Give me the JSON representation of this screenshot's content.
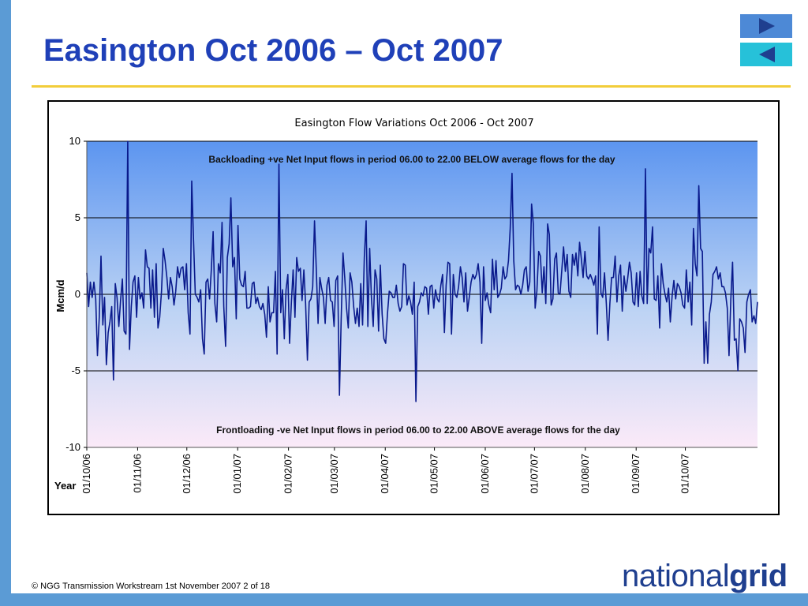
{
  "slide": {
    "title": "Easington Oct 2006 – Oct 2007",
    "footer": "© NGG Transmission Workstream 1st November 2007 2 of 18",
    "logo": {
      "part1": "national",
      "part2": "grid"
    },
    "nav": {
      "next_icon": "play-right-icon",
      "prev_icon": "play-left-icon"
    },
    "colors": {
      "title": "#1f40b8",
      "accent_bar": "#5b9bd5",
      "rule": "#f2cd3a",
      "series": "#0a1a8c"
    }
  },
  "chart_data": {
    "type": "line",
    "title": "Easington Flow Variations Oct 2006 - Oct 2007",
    "ylabel": "Mcm/d",
    "xlabel": "Year",
    "ylim": [
      -10,
      10
    ],
    "yticks": [
      -10,
      -5,
      0,
      5,
      10
    ],
    "grid": true,
    "x_start": "01/10/06",
    "x_end": "14/11/07",
    "xtick_labels": [
      "01/10/06",
      "01/11/06",
      "01/12/06",
      "01/01/07",
      "01/02/07",
      "01/03/07",
      "01/04/07",
      "01/05/07",
      "01/06/07",
      "01/07/07",
      "01/08/07",
      "01/09/07",
      "01/10/07"
    ],
    "annotations": {
      "top": "Backloading +ve Net Input flows in period 06.00 to 22.00 BELOW average flows for the day",
      "bottom": "Frontloading -ve Net Input flows in period 06.00 to 22.00 ABOVE average flows for the day"
    },
    "series": [
      {
        "values": [
          1.4,
          -0.8,
          0.8,
          -0.2,
          0.8,
          -0.3,
          -4.0,
          -1.5,
          2.5,
          -2.0,
          -0.2,
          -4.6,
          -2.5,
          -1.8,
          -0.8,
          -5.6,
          0.7,
          -0.2,
          -2.1,
          -0.4,
          1.0,
          -2.4,
          -2.6,
          10.0,
          -3.6,
          -0.8,
          0.8,
          1.2,
          -1.5,
          1.1,
          -0.3,
          0.1,
          -0.9,
          2.9,
          1.8,
          1.7,
          -0.9,
          1.6,
          -1.5,
          2.0,
          -2.2,
          -1.5,
          0.2,
          3.0,
          2.2,
          1.1,
          -0.3,
          1.1,
          0.5,
          -0.7,
          0.2,
          1.8,
          1.1,
          1.7,
          1.8,
          0.3,
          2.0,
          -1.2,
          -2.6,
          7.4,
          3.5,
          0.0,
          -0.2,
          -0.5,
          0.3,
          -2.9,
          -3.9,
          0.8,
          1.0,
          -0.3,
          1.6,
          4.1,
          -0.6,
          -1.8,
          2.0,
          1.4,
          4.7,
          -0.8,
          -3.4,
          2.4,
          3.3,
          6.3,
          1.8,
          2.4,
          -1.6,
          4.5,
          1.0,
          0.6,
          0.5,
          1.5,
          -0.9,
          -0.9,
          -0.8,
          0.7,
          0.8,
          -0.6,
          -0.2,
          -0.8,
          -1.0,
          -0.6,
          -1.3,
          -2.8,
          0.5,
          -1.8,
          -1.2,
          -1.2,
          1.5,
          -3.9,
          8.5,
          -1.2,
          0.3,
          -2.9,
          0.3,
          1.3,
          -3.2,
          -0.5,
          1.6,
          -1.5,
          2.4,
          1.5,
          1.7,
          -0.4,
          1.6,
          -0.6,
          -4.3,
          -0.5,
          -0.3,
          0.5,
          4.8,
          1.7,
          -1.9,
          1.1,
          0.4,
          -0.2,
          -1.9,
          0.6,
          1.1,
          -0.4,
          -0.5,
          -2.1,
          0.9,
          1.2,
          -6.6,
          -1.6,
          2.7,
          1.1,
          -0.9,
          -2.2,
          1.4,
          0.8,
          -0.8,
          -1.9,
          -0.9,
          -2.1,
          0.7,
          -2.0,
          2.4,
          4.8,
          -2.1,
          3.0,
          -0.2,
          -2.1,
          1.6,
          1.0,
          -2.4,
          1.9,
          -1.3,
          -2.9,
          -3.2,
          -1.3,
          0.2,
          0.1,
          -0.2,
          -0.2,
          0.6,
          -0.6,
          -1.1,
          -0.8,
          2.0,
          1.9,
          -0.7,
          -0.1,
          -0.5,
          -1.3,
          0.8,
          -7.0,
          -0.8,
          -0.5,
          0.1,
          -0.1,
          0.5,
          0.4,
          -1.3,
          0.5,
          0.6,
          -0.9,
          0.3,
          -0.3,
          -0.5,
          0.6,
          1.3,
          -2.5,
          0.6,
          2.1,
          2.0,
          -2.6,
          1.3,
          0.0,
          -0.2,
          0.5,
          1.8,
          1.1,
          -0.5,
          1.4,
          -1.1,
          -0.2,
          0.8,
          1.3,
          1.0,
          1.3,
          2.0,
          0.8,
          -3.2,
          1.8,
          -0.4,
          0.1,
          -0.7,
          -1.2,
          2.3,
          0.3,
          2.2,
          -0.2,
          0.0,
          0.4,
          1.8,
          1.0,
          1.2,
          2.2,
          4.3,
          7.9,
          2.2,
          0.3,
          0.6,
          0.5,
          0.0,
          0.6,
          1.6,
          1.8,
          0.2,
          0.8,
          5.9,
          4.6,
          -0.9,
          0.2,
          2.8,
          2.5,
          0.1,
          1.8,
          -0.6,
          4.6,
          3.9,
          -0.7,
          -0.3,
          2.3,
          2.7,
          0.1,
          0.0,
          1.6,
          3.1,
          1.5,
          2.6,
          0.2,
          -0.2,
          2.6,
          1.9,
          2.7,
          1.2,
          3.4,
          2.3,
          1.1,
          2.8,
          1.2,
          1.0,
          1.3,
          1.0,
          0.6,
          1.2,
          -2.6,
          4.4,
          0.1,
          -0.2,
          1.4,
          -0.6,
          -3.0,
          -0.6,
          1.1,
          1.1,
          2.5,
          -0.5,
          1.2,
          1.9,
          -1.1,
          1.2,
          0.2,
          1.0,
          2.1,
          1.4,
          -0.5,
          -0.7,
          1.4,
          -0.8,
          1.5,
          -0.1,
          -0.6,
          8.2,
          -0.6,
          3.0,
          2.7,
          4.4,
          -0.3,
          -0.4,
          1.2,
          -2.2,
          2.0,
          0.7,
          0.0,
          -0.5,
          0.4,
          -1.8,
          -0.1,
          0.9,
          -0.3,
          0.7,
          0.5,
          0.1,
          -0.7,
          -0.9,
          1.6,
          -0.5,
          0.8,
          -2.0,
          4.3,
          2.0,
          1.2,
          7.1,
          3.0,
          2.8,
          -4.5,
          -1.8,
          -4.5,
          -1.3,
          -0.5,
          1.3,
          1.5,
          1.8,
          1.0,
          1.4,
          0.5,
          0.5,
          0.1,
          -0.9,
          -4.0,
          -0.3,
          2.1,
          -3.0,
          -2.9,
          -5.0,
          -1.6,
          -1.8,
          -2.2,
          -3.8,
          -0.5,
          0.0,
          0.3,
          -1.8,
          -1.4,
          -1.9,
          -0.5
        ]
      }
    ]
  }
}
